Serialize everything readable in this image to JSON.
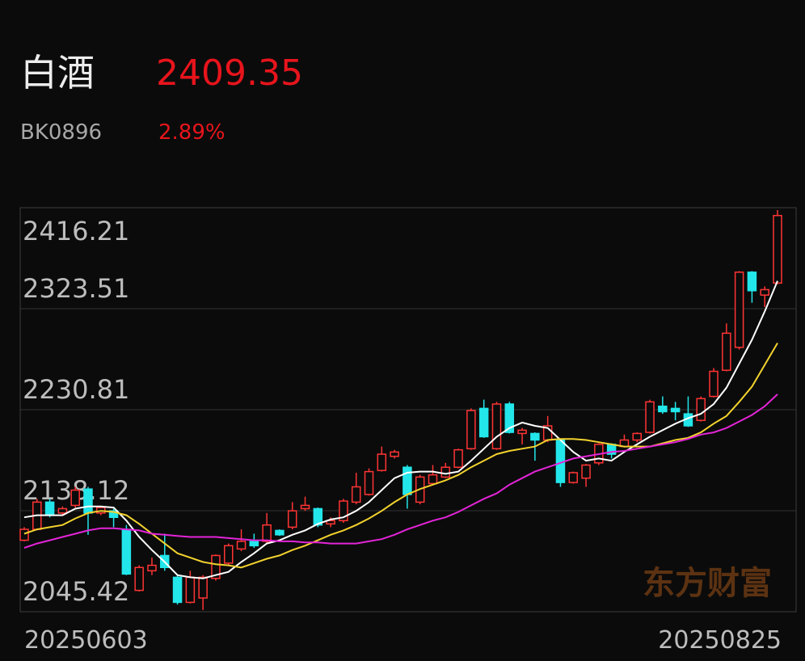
{
  "header": {
    "title": "白酒",
    "price": "2409.35",
    "code": "BK0896",
    "change": "2.89%"
  },
  "chart_data": {
    "type": "candlestick",
    "watermark": "东方财富",
    "categories": [
      "20250603",
      null,
      null,
      null,
      null,
      null,
      null,
      null,
      null,
      null,
      null,
      null,
      null,
      null,
      null,
      null,
      null,
      null,
      null,
      null,
      null,
      null,
      null,
      null,
      null,
      null,
      null,
      null,
      null,
      null,
      null,
      null,
      null,
      null,
      null,
      null,
      null,
      null,
      null,
      null,
      null,
      null,
      null,
      null,
      null,
      null,
      null,
      null,
      null,
      null,
      null,
      null,
      null,
      null,
      null,
      null,
      null,
      null,
      null,
      "20250825"
    ],
    "open": [
      2111,
      2121,
      2146,
      2136,
      2143,
      2158,
      2136,
      2138,
      2121,
      2065,
      2083,
      2097,
      2077,
      2054,
      2058,
      2076,
      2090,
      2103,
      2110,
      2110,
      2120,
      2123,
      2140,
      2140,
      2126,
      2129,
      2146,
      2153,
      2175,
      2188,
      2178,
      2146,
      2163,
      2169,
      2178,
      2195,
      2232,
      2195,
      2236,
      2209,
      2209,
      2203,
      2203,
      2164,
      2168,
      2182,
      2199,
      2197,
      2203,
      2210,
      2234,
      2232,
      2227,
      2221,
      2243,
      2267,
      2288,
      2357,
      2336,
      2347
    ],
    "high": [
      2123,
      2149,
      2149,
      2142,
      2160,
      2160,
      2142,
      2140,
      2125,
      2088,
      2095,
      2117,
      2079,
      2083,
      2079,
      2098,
      2108,
      2121,
      2117,
      2136,
      2121,
      2146,
      2151,
      2141,
      2132,
      2149,
      2173,
      2177,
      2197,
      2194,
      2180,
      2171,
      2180,
      2182,
      2195,
      2232,
      2240,
      2238,
      2238,
      2214,
      2210,
      2225,
      2204,
      2174,
      2181,
      2200,
      2200,
      2208,
      2210,
      2240,
      2243,
      2238,
      2243,
      2243,
      2269,
      2310,
      2358,
      2358,
      2344,
      2414
    ],
    "low": [
      2110,
      2120,
      2132,
      2134,
      2141,
      2116,
      2134,
      2123,
      2079,
      2064,
      2079,
      2083,
      2052,
      2053,
      2047,
      2074,
      2088,
      2101,
      2104,
      2108,
      2115,
      2121,
      2138,
      2123,
      2123,
      2127,
      2144,
      2152,
      2174,
      2186,
      2140,
      2144,
      2162,
      2168,
      2177,
      2194,
      2205,
      2194,
      2209,
      2199,
      2184,
      2201,
      2160,
      2163,
      2160,
      2180,
      2186,
      2196,
      2201,
      2209,
      2227,
      2221,
      2215,
      2220,
      2242,
      2266,
      2286,
      2329,
      2325,
      2346
    ],
    "close": [
      2121,
      2146,
      2135,
      2140,
      2157,
      2136,
      2141,
      2132,
      2080,
      2086,
      2088,
      2086,
      2054,
      2077,
      2077,
      2097,
      2106,
      2110,
      2106,
      2125,
      2116,
      2138,
      2143,
      2125,
      2129,
      2147,
      2160,
      2174,
      2190,
      2192,
      2153,
      2169,
      2171,
      2178,
      2194,
      2230,
      2206,
      2236,
      2210,
      2212,
      2203,
      2216,
      2164,
      2173,
      2180,
      2199,
      2190,
      2203,
      2209,
      2238,
      2229,
      2229,
      2216,
      2241,
      2266,
      2301,
      2357,
      2340,
      2341,
      2409
    ],
    "up_color": "#ff3434",
    "down_color": "#22e6ea",
    "series": [
      {
        "color": "#ffffff",
        "values": [
          2132,
          2134,
          2134,
          2134,
          2140,
          2142,
          2142,
          2141,
          2129,
          2114,
          2102,
          2091,
          2079,
          2077,
          2076,
          2079,
          2082,
          2091,
          2099,
          2108,
          2111,
          2116,
          2120,
          2126,
          2130,
          2132,
          2138,
          2146,
          2157,
          2168,
          2173,
          2174,
          2174,
          2172,
          2174,
          2184,
          2195,
          2206,
          2214,
          2219,
          2216,
          2214,
          2203,
          2192,
          2184,
          2186,
          2184,
          2192,
          2199,
          2206,
          2212,
          2218,
          2223,
          2227,
          2236,
          2251,
          2273,
          2295,
          2321,
          2349
        ]
      },
      {
        "color": "#f2d22e",
        "values": [
          2117,
          2121,
          2123,
          2125,
          2131,
          2136,
          2138,
          2137,
          2134,
          2126,
          2117,
          2108,
          2099,
          2095,
          2091,
          2089,
          2088,
          2086,
          2090,
          2094,
          2097,
          2102,
          2106,
          2111,
          2116,
          2120,
          2125,
          2131,
          2138,
          2146,
          2153,
          2158,
          2162,
          2166,
          2171,
          2178,
          2184,
          2190,
          2193,
          2195,
          2197,
          2203,
          2204,
          2204,
          2203,
          2201,
          2199,
          2197,
          2197,
          2197,
          2200,
          2203,
          2205,
          2210,
          2218,
          2225,
          2238,
          2252,
          2272,
          2292
        ]
      },
      {
        "color": "#e424d8",
        "values": [
          2104,
          2108,
          2111,
          2114,
          2117,
          2120,
          2122,
          2122,
          2121,
          2120,
          2117,
          2116,
          2115,
          2114,
          2114,
          2114,
          2113,
          2112,
          2111,
          2111,
          2110,
          2110,
          2109,
          2109,
          2108,
          2108,
          2108,
          2110,
          2112,
          2116,
          2121,
          2125,
          2129,
          2132,
          2137,
          2143,
          2149,
          2154,
          2162,
          2168,
          2174,
          2178,
          2182,
          2186,
          2188,
          2190,
          2192,
          2193,
          2195,
          2197,
          2199,
          2201,
          2204,
          2208,
          2210,
          2214,
          2220,
          2226,
          2234,
          2245
        ]
      }
    ],
    "ylim": [
      2045.42,
      2416.21
    ],
    "yticks": [
      2416.21,
      2323.51,
      2230.81,
      2138.12,
      2045.42
    ],
    "grid": true
  }
}
